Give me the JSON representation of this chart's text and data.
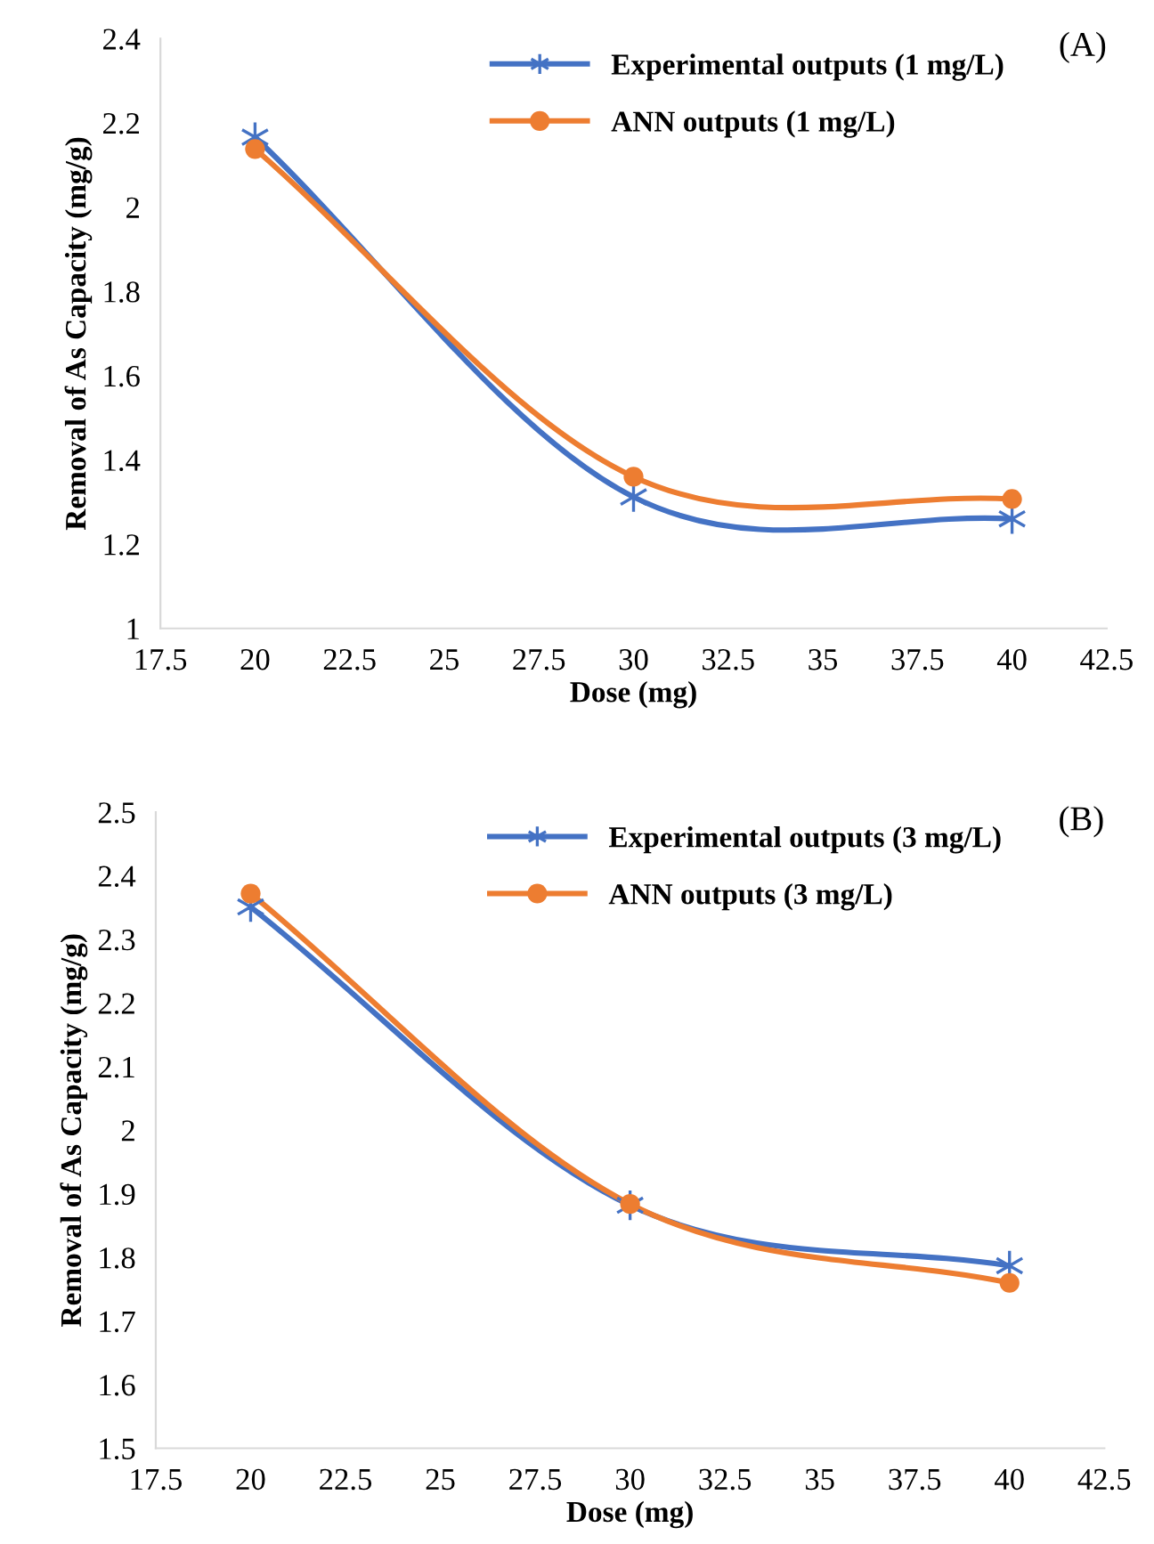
{
  "chart_data": [
    {
      "type": "line",
      "xlabel": "Dose (mg)",
      "ylabel": "Removal of As Capacity (mg/g)",
      "annotations": [
        "(A)"
      ],
      "x": [
        20,
        30,
        40
      ],
      "series": [
        {
          "name": "Experimental outputs (1 mg/L)",
          "color": "#4472c4",
          "marker": "cross",
          "values": [
            2.166,
            1.312,
            1.26
          ]
        },
        {
          "name": "ANN outputs (1 mg/L)",
          "color": "#ed7d31",
          "marker": "circle",
          "values": [
            2.138,
            1.36,
            1.307
          ]
        }
      ],
      "xlim": [
        17.5,
        42.5
      ],
      "xticks": [
        17.5,
        20,
        22.5,
        25,
        27.5,
        30,
        32.5,
        35,
        37.5,
        40,
        42.5
      ],
      "ylim": [
        1,
        2.4
      ],
      "yticks": [
        1,
        1.2,
        1.4,
        1.6,
        1.8,
        2,
        2.2,
        2.4
      ],
      "grid": false,
      "legend": "top right",
      "line_style": "solid"
    },
    {
      "type": "line",
      "xlabel": "Dose (mg)",
      "ylabel": "Removal of As Capacity (mg/g)",
      "annotations": [
        "(B)"
      ],
      "x": [
        20,
        30,
        40
      ],
      "series": [
        {
          "name": "Experimental outputs (3 mg/L)",
          "color": "#4472c4",
          "marker": "cross",
          "values": [
            2.351,
            1.882,
            1.787
          ]
        },
        {
          "name": "ANN outputs (3 mg/L)",
          "color": "#ed7d31",
          "marker": "circle",
          "values": [
            2.372,
            1.884,
            1.76
          ]
        }
      ],
      "xlim": [
        17.5,
        42.5
      ],
      "xticks": [
        17.5,
        20,
        22.5,
        25,
        27.5,
        30,
        32.5,
        35,
        37.5,
        40,
        42.5
      ],
      "ylim": [
        1.5,
        2.5
      ],
      "yticks": [
        1.5,
        1.6,
        1.7,
        1.8,
        1.9,
        2,
        2.1,
        2.2,
        2.3,
        2.4,
        2.5
      ],
      "grid": false,
      "legend": "top right",
      "line_style": "solid"
    }
  ]
}
